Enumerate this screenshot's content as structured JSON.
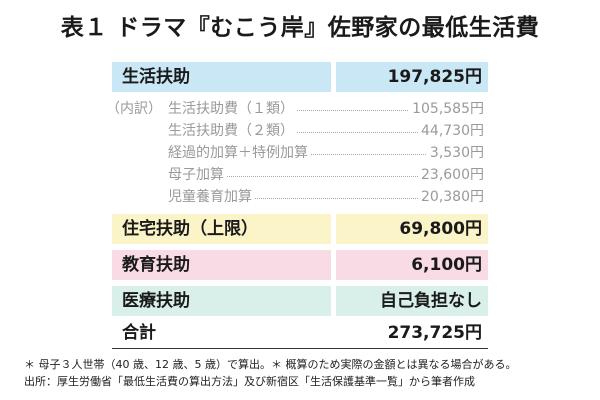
{
  "title": "表１ ドラマ『むこう岸』佐野家の最低生活費",
  "rows": {
    "living": {
      "label": "生活扶助",
      "value": "197,825円"
    },
    "housing": {
      "label": "住宅扶助（上限）",
      "value": "69,800円"
    },
    "education": {
      "label": "教育扶助",
      "value": "6,100円"
    },
    "medical": {
      "label": "医療扶助",
      "value": "自己負担なし"
    },
    "total": {
      "label": "合計",
      "value": "273,725円"
    }
  },
  "breakdown": {
    "prefix": "（内訳）",
    "items": [
      {
        "label": "生活扶助費（１類）",
        "value": "105,585円"
      },
      {
        "label": "生活扶助費（２類）",
        "value": "44,730円"
      },
      {
        "label": "経過的加算＋特例加算",
        "value": "3,530円"
      },
      {
        "label": "母子加算",
        "value": "23,600円"
      },
      {
        "label": "児童養育加算",
        "value": "20,380円"
      }
    ]
  },
  "notes": [
    "＊ 母子３人世帯（40 歳、12 歳、5 歳）で算出。＊ 概算のため実際の金額とは異なる場合がある。",
    "出所：厚生労働省「最低生活費の算出方法」及び新宿区「生活保護基準一覧」から筆者作成"
  ],
  "colors": {
    "living": "#c9e7f4",
    "housing": "#faf4c8",
    "education": "#f8dbe4",
    "medical": "#d9efe9"
  }
}
